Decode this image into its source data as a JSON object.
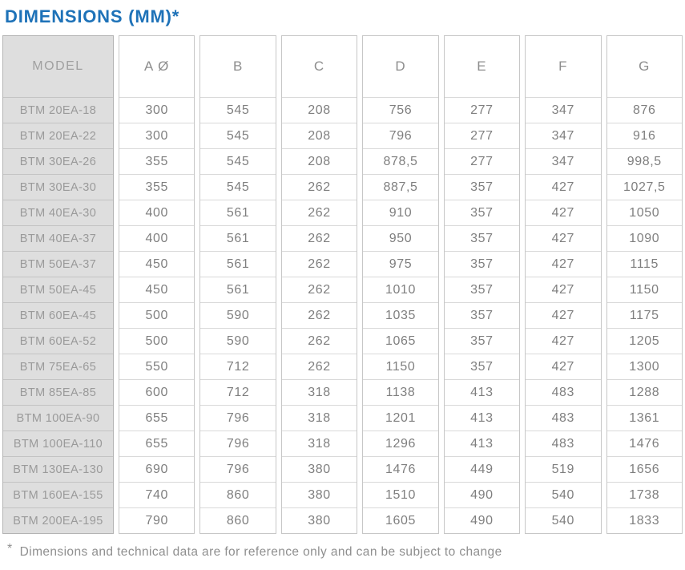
{
  "page": {
    "title": "DIMENSIONS (MM)*",
    "footnote_marker": "*",
    "footnote_text": "Dimensions and technical data are for reference only and can be subject to change"
  },
  "colors": {
    "title_blue": "#1e72b8",
    "model_column_bg": "#dedede",
    "data_text_gray": "#7f7f7f",
    "border_gray": "#c7c7c7"
  },
  "table": {
    "model_header": "MODEL",
    "column_headers": [
      "A Ø",
      "B",
      "C",
      "D",
      "E",
      "F",
      "G"
    ],
    "rows": [
      {
        "model": "BTM 20EA-18",
        "values": [
          "300",
          "545",
          "208",
          "756",
          "277",
          "347",
          "876"
        ]
      },
      {
        "model": "BTM 20EA-22",
        "values": [
          "300",
          "545",
          "208",
          "796",
          "277",
          "347",
          "916"
        ]
      },
      {
        "model": "BTM 30EA-26",
        "values": [
          "355",
          "545",
          "208",
          "878,5",
          "277",
          "347",
          "998,5"
        ]
      },
      {
        "model": "BTM 30EA-30",
        "values": [
          "355",
          "545",
          "262",
          "887,5",
          "357",
          "427",
          "1027,5"
        ]
      },
      {
        "model": "BTM 40EA-30",
        "values": [
          "400",
          "561",
          "262",
          "910",
          "357",
          "427",
          "1050"
        ]
      },
      {
        "model": "BTM 40EA-37",
        "values": [
          "400",
          "561",
          "262",
          "950",
          "357",
          "427",
          "1090"
        ]
      },
      {
        "model": "BTM 50EA-37",
        "values": [
          "450",
          "561",
          "262",
          "975",
          "357",
          "427",
          "1115"
        ]
      },
      {
        "model": "BTM 50EA-45",
        "values": [
          "450",
          "561",
          "262",
          "1010",
          "357",
          "427",
          "1150"
        ]
      },
      {
        "model": "BTM 60EA-45",
        "values": [
          "500",
          "590",
          "262",
          "1035",
          "357",
          "427",
          "1175"
        ]
      },
      {
        "model": "BTM 60EA-52",
        "values": [
          "500",
          "590",
          "262",
          "1065",
          "357",
          "427",
          "1205"
        ]
      },
      {
        "model": "BTM 75EA-65",
        "values": [
          "550",
          "712",
          "262",
          "1150",
          "357",
          "427",
          "1300"
        ]
      },
      {
        "model": "BTM 85EA-85",
        "values": [
          "600",
          "712",
          "318",
          "1138",
          "413",
          "483",
          "1288"
        ]
      },
      {
        "model": "BTM 100EA-90",
        "values": [
          "655",
          "796",
          "318",
          "1201",
          "413",
          "483",
          "1361"
        ]
      },
      {
        "model": "BTM 100EA-110",
        "values": [
          "655",
          "796",
          "318",
          "1296",
          "413",
          "483",
          "1476"
        ]
      },
      {
        "model": "BTM 130EA-130",
        "values": [
          "690",
          "796",
          "380",
          "1476",
          "449",
          "519",
          "1656"
        ]
      },
      {
        "model": "BTM 160EA-155",
        "values": [
          "740",
          "860",
          "380",
          "1510",
          "490",
          "540",
          "1738"
        ]
      },
      {
        "model": "BTM 200EA-195",
        "values": [
          "790",
          "860",
          "380",
          "1605",
          "490",
          "540",
          "1833"
        ]
      }
    ]
  }
}
